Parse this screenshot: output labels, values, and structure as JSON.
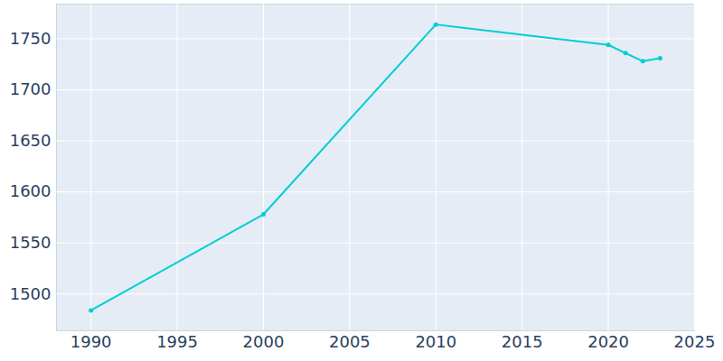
{
  "chart_data": {
    "type": "line",
    "x": [
      1990,
      2000,
      2010,
      2020,
      2021,
      2022,
      2023
    ],
    "values": [
      1484,
      1578,
      1764,
      1744,
      1736,
      1728,
      1731
    ],
    "color": "#00CED1",
    "marker": "circle",
    "xlim": [
      1988,
      2025
    ],
    "ylim": [
      1464,
      1784
    ],
    "xticks": [
      1990,
      1995,
      2000,
      2005,
      2010,
      2015,
      2020,
      2025
    ],
    "yticks": [
      1500,
      1550,
      1600,
      1650,
      1700,
      1750
    ],
    "grid": true
  }
}
